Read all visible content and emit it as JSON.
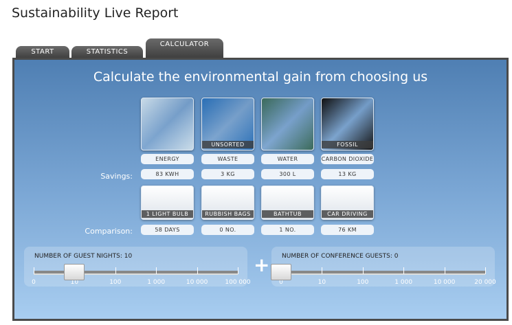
{
  "title": "Sustainability Live Report",
  "tabs": [
    {
      "label": "START"
    },
    {
      "label": "STATISTICS"
    },
    {
      "label": "CALCULATOR",
      "active": true
    }
  ],
  "heading": "Calculate the environmental gain from choosing us",
  "savings_label": "Savings:",
  "comparison_label": "Comparison:",
  "categories": [
    {
      "image": "power-plug",
      "caption": "",
      "name": "ENERGY",
      "saving": "83 KWH",
      "cmp_image": "light-bulb",
      "cmp_caption": "1 LIGHT BULB",
      "comparison": "58 DAYS",
      "color": "#c9dbe8"
    },
    {
      "image": "waste-bin",
      "caption": "UNSORTED",
      "name": "WASTE",
      "saving": "3 KG",
      "cmp_image": "rubbish-bag",
      "cmp_caption": "RUBBISH BAGS",
      "comparison": "0 NO.",
      "color": "#2a6fb6"
    },
    {
      "image": "waterfall",
      "caption": "",
      "name": "WATER",
      "saving": "300 L",
      "cmp_image": "bathtub",
      "cmp_caption": "BATHTUB",
      "comparison": "1 NO.",
      "color": "#3b6a5a"
    },
    {
      "image": "smoke",
      "caption": "FOSSIL",
      "name": "CARBON DIOXIDE",
      "saving": "13 KG",
      "cmp_image": "car",
      "cmp_caption": "CAR DRIVING",
      "comparison": "76 KM",
      "color": "#111"
    }
  ],
  "sliders": [
    {
      "label": "NUMBER OF GUEST NIGHTS: 10",
      "ticks": [
        "0",
        "10",
        "100",
        "1 000",
        "10 000",
        "100 000"
      ],
      "value_index": 1
    },
    {
      "label": "NUMBER OF CONFERENCE GUESTS: 0",
      "ticks": [
        "0",
        "10",
        "100",
        "1 000",
        "10 000",
        "20 000"
      ],
      "value_index": 0
    }
  ],
  "plus": "+"
}
